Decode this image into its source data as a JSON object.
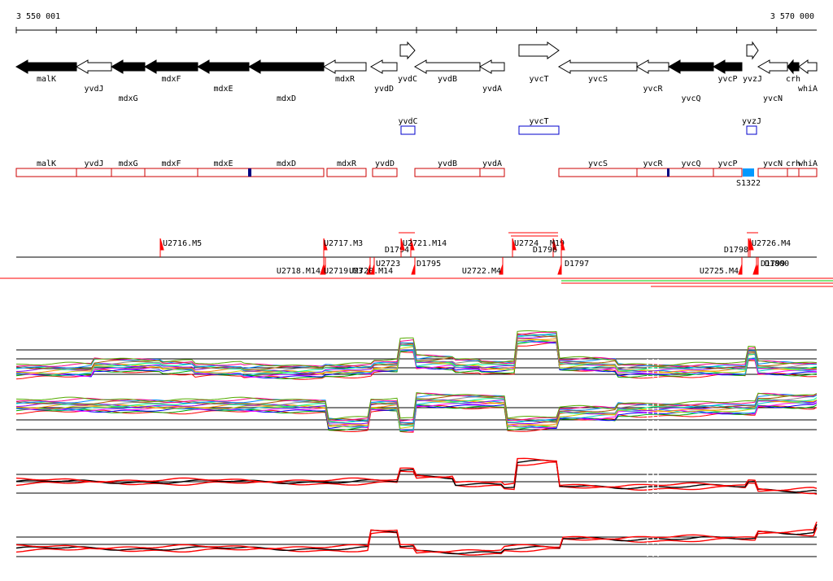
{
  "ruler": {
    "start_label": "3 550 001",
    "end_label": "3 570 000"
  },
  "colors": {
    "forward_gene_fill": "#ffffff",
    "reverse_gene_fill": "#000000",
    "annotation_box": "#cc0000",
    "ncrna_box": "#0000cc",
    "marker_dark": "#000080",
    "marker_light": "#0099ff",
    "tss_marker": "#ff0000",
    "expr_red": "#ff0000",
    "expr_black": "#000000",
    "expr_green": "#00cc00"
  },
  "genes": [
    {
      "name": "malK",
      "strand": "-",
      "filled": true
    },
    {
      "name": "yvdJ",
      "strand": "-",
      "filled": false
    },
    {
      "name": "mdxG",
      "strand": "-",
      "filled": true
    },
    {
      "name": "mdxF",
      "strand": "-",
      "filled": true
    },
    {
      "name": "mdxE",
      "strand": "-",
      "filled": true
    },
    {
      "name": "mdxD",
      "strand": "-",
      "filled": true
    },
    {
      "name": "mdxR",
      "strand": "-",
      "filled": false
    },
    {
      "name": "yvdD",
      "strand": "-",
      "filled": false
    },
    {
      "name": "yvdC",
      "strand": "+",
      "filled": false
    },
    {
      "name": "yvdB",
      "strand": "-",
      "filled": false
    },
    {
      "name": "yvdA",
      "strand": "-",
      "filled": false
    },
    {
      "name": "yvcT",
      "strand": "+",
      "filled": false
    },
    {
      "name": "yvcS",
      "strand": "-",
      "filled": false
    },
    {
      "name": "yvcR",
      "strand": "-",
      "filled": false
    },
    {
      "name": "yvcQ",
      "strand": "-",
      "filled": true
    },
    {
      "name": "yvcP",
      "strand": "-",
      "filled": true
    },
    {
      "name": "yvzJ",
      "strand": "+",
      "filled": false
    },
    {
      "name": "yvcN",
      "strand": "-",
      "filled": false
    },
    {
      "name": "crh",
      "strand": "-",
      "filled": true
    },
    {
      "name": "whiA",
      "strand": "-",
      "filled": false
    }
  ],
  "small_genes": [
    "yvdC",
    "yvcT",
    "yvzJ"
  ],
  "annotations": [
    "malK",
    "yvdJ",
    "mdxG",
    "mdxF",
    "mdxE",
    "mdxD",
    "mdxR",
    "yvdD",
    "yvdB",
    "yvdA",
    "yvcS",
    "yvcR",
    "yvcQ",
    "yvcP",
    "yvcN",
    "crh",
    "whiA"
  ],
  "annotation_extra_label": "S1322",
  "transcription_sites": [
    "U2716.M5",
    "U2717.M3",
    "U2718.M14",
    "U2719.M3",
    "U2720.M14",
    "U2723",
    "D1794",
    "U2721.M14",
    "D1795",
    "U2722.M4",
    "U2724",
    "M19",
    "D1796",
    "D1797",
    "D1798",
    "U2726.M4",
    "U2725.M4",
    "D1799",
    "D1800"
  ],
  "profile_panels": [
    {
      "id": "conditions-forward"
    },
    {
      "id": "conditions-reverse"
    },
    {
      "id": "selected-forward"
    },
    {
      "id": "selected-reverse"
    }
  ]
}
